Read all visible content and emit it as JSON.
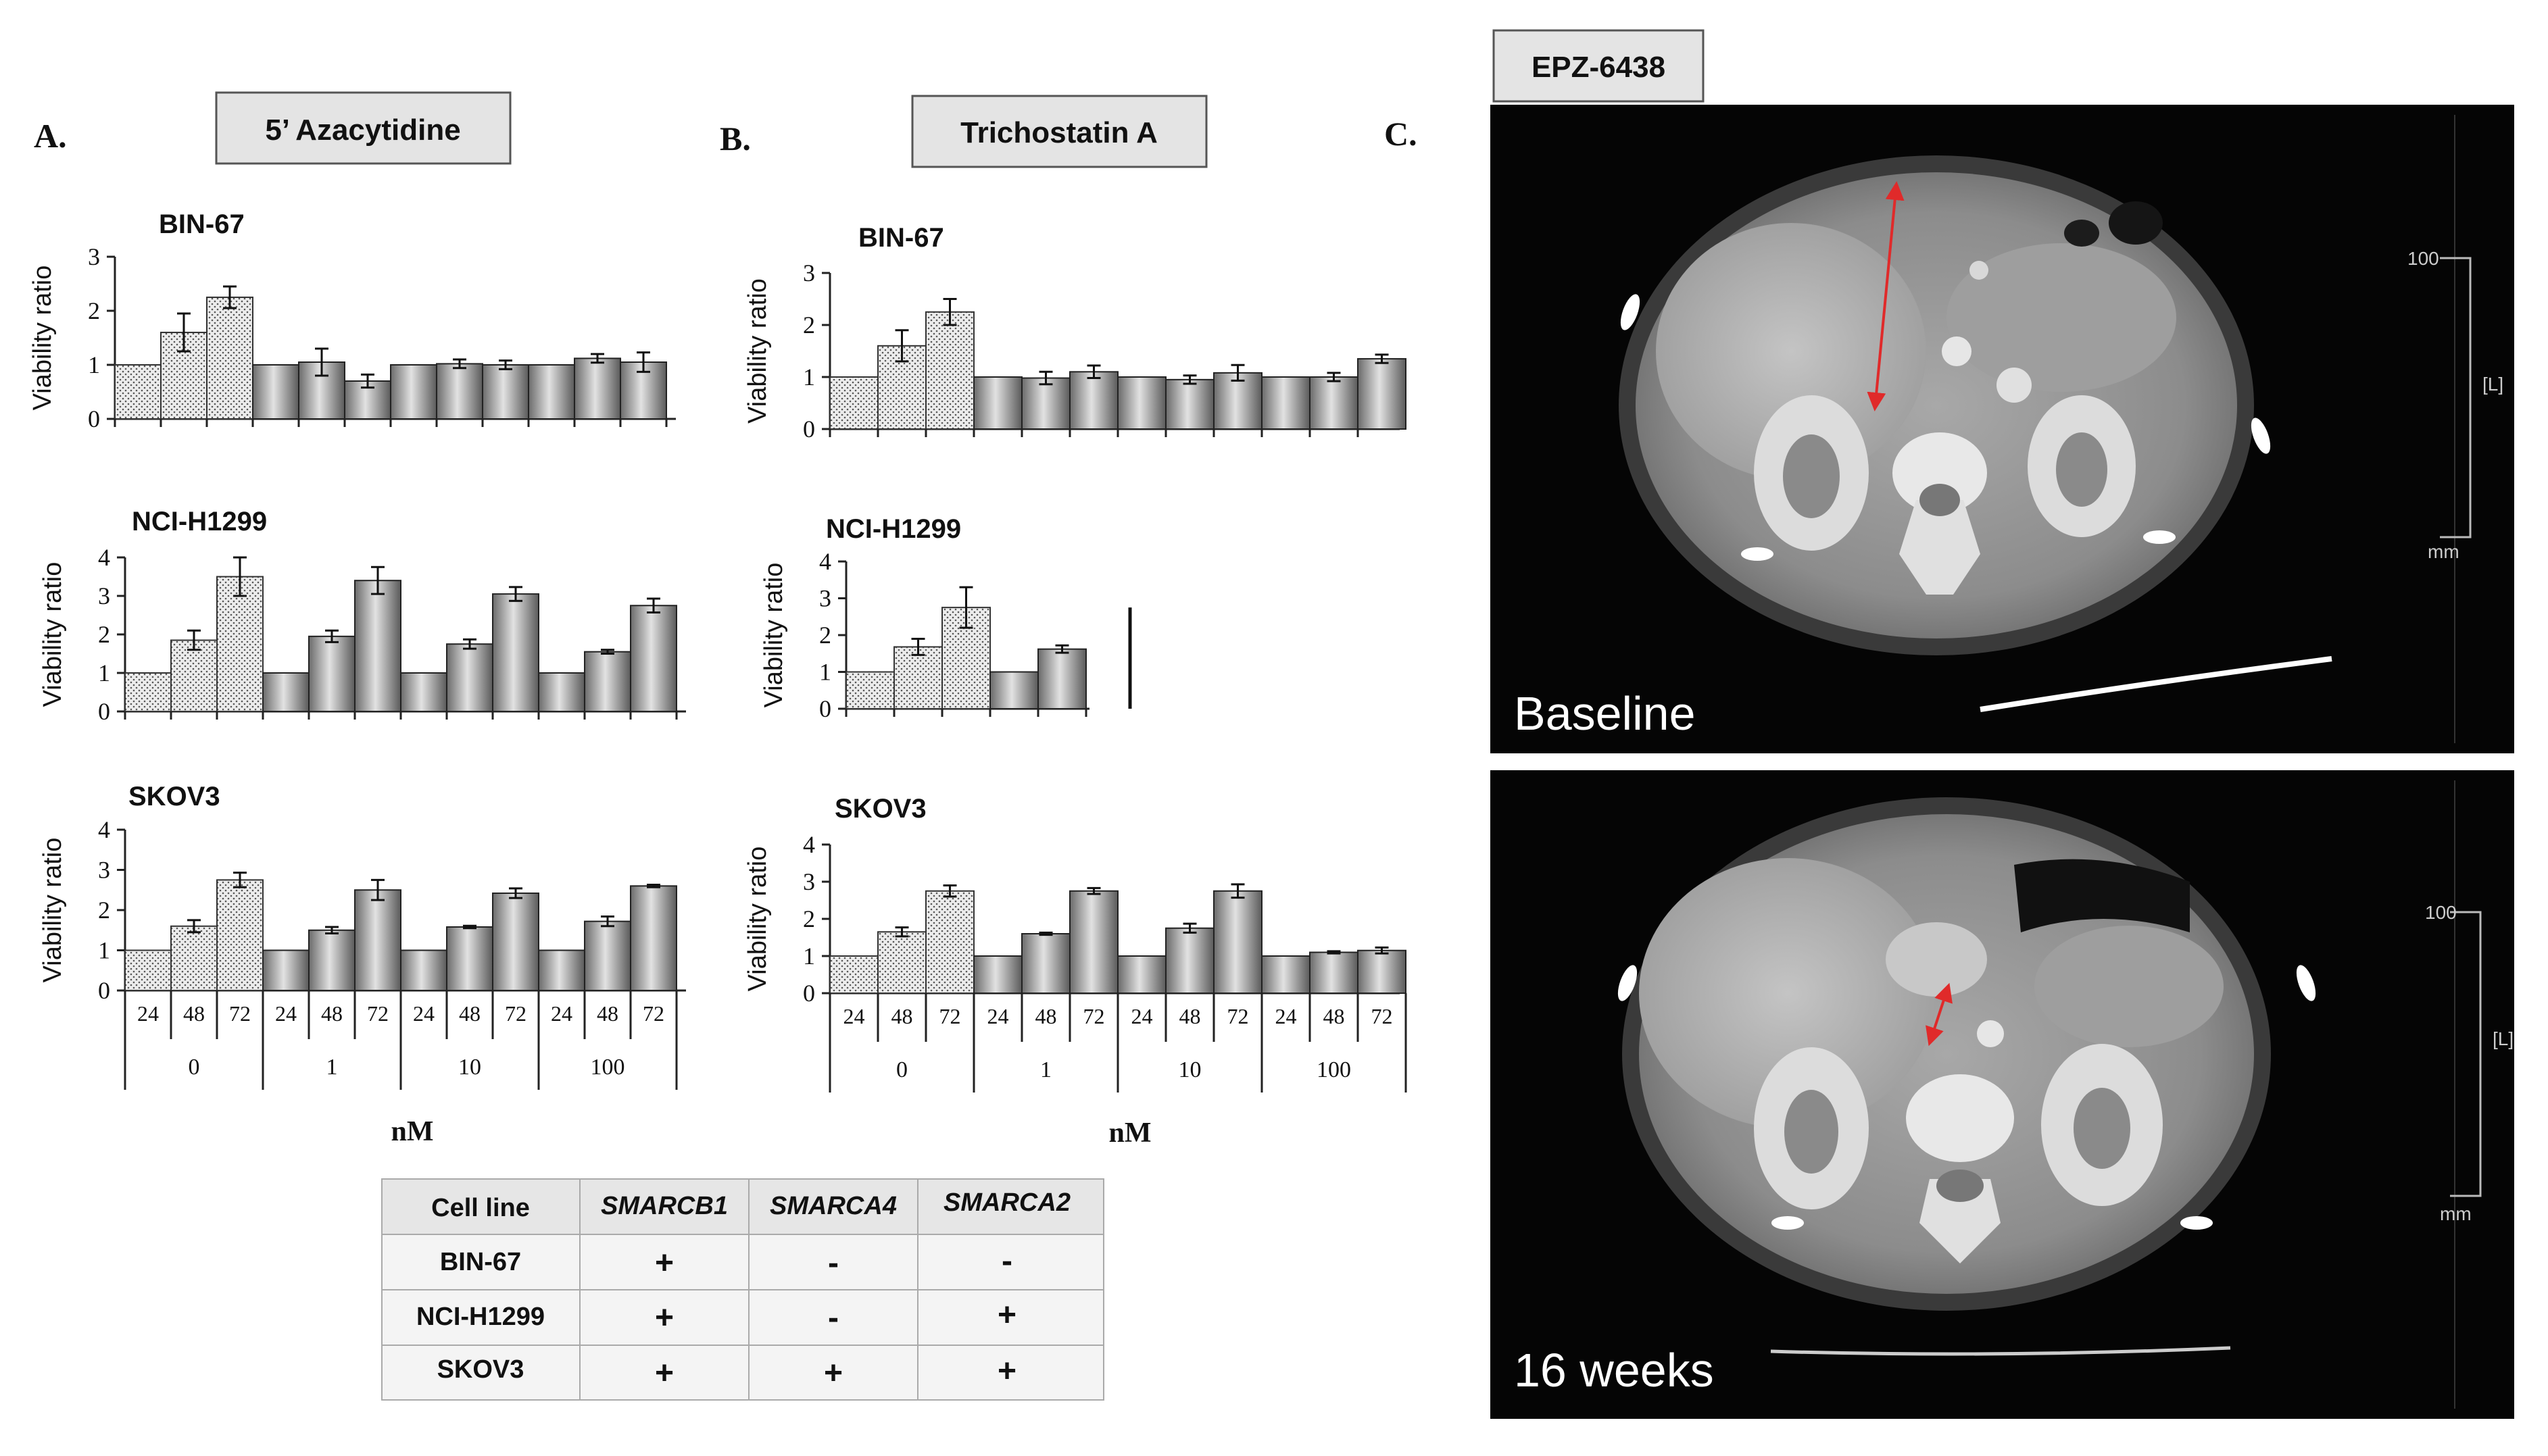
{
  "panel_letters": {
    "a": "A.",
    "b": "B.",
    "c": "C."
  },
  "drugs": {
    "a": "5’ Azacytidine",
    "b": "Trichostatin A",
    "c": "EPZ-6438"
  },
  "y_axis_label": "Viability ratio",
  "x_unit": "nM",
  "time_labels": [
    "24",
    "48",
    "72"
  ],
  "dose_labels": [
    "0",
    "1",
    "10",
    "100"
  ],
  "ct_images": {
    "top_label": "Baseline",
    "bottom_label": "16 weeks",
    "scale_100": "100",
    "scale_L": "[L]",
    "scale_mm": "mm"
  },
  "table": {
    "headers": [
      "Cell line",
      "SMARCB1",
      "SMARCA4",
      "SMARCA2"
    ],
    "rows": [
      {
        "cell_line": "BIN-67",
        "SMARCB1": "+",
        "SMARCA4": "-",
        "SMARCA2": "-"
      },
      {
        "cell_line": "NCI-H1299",
        "SMARCB1": "+",
        "SMARCA4": "-",
        "SMARCA2": "+"
      },
      {
        "cell_line": "SKOV3",
        "SMARCB1": "+",
        "SMARCA4": "+",
        "SMARCA2": "+"
      }
    ]
  },
  "chart_data": [
    {
      "type": "bar",
      "panel": "A",
      "title": "BIN-67",
      "ylabel": "Viability ratio",
      "xlabel": "",
      "ylim": [
        0,
        3
      ],
      "yticks": [
        0,
        1,
        2,
        3
      ],
      "groups": [
        "0",
        "1",
        "10",
        "100"
      ],
      "times": [
        "24",
        "48",
        "72"
      ],
      "values": [
        1.0,
        1.6,
        2.25,
        1.0,
        1.05,
        0.7,
        1.0,
        1.02,
        1.0,
        1.0,
        1.12,
        1.05
      ],
      "errors": [
        0,
        0.35,
        0.2,
        0,
        0.25,
        0.12,
        0,
        0.08,
        0.08,
        0,
        0.08,
        0.18
      ],
      "show_xaxis": false
    },
    {
      "type": "bar",
      "panel": "A",
      "title": "NCI-H1299",
      "ylabel": "Viability ratio",
      "xlabel": "",
      "ylim": [
        0,
        4
      ],
      "yticks": [
        0,
        1,
        2,
        3,
        4
      ],
      "groups": [
        "0",
        "1",
        "10",
        "100"
      ],
      "times": [
        "24",
        "48",
        "72"
      ],
      "values": [
        1.0,
        1.85,
        3.5,
        1.0,
        1.95,
        3.4,
        1.0,
        1.75,
        3.05,
        1.0,
        1.55,
        2.75
      ],
      "errors": [
        0,
        0.25,
        0.5,
        0,
        0.15,
        0.35,
        0,
        0.12,
        0.18,
        0,
        0.05,
        0.18
      ],
      "show_xaxis": false
    },
    {
      "type": "bar",
      "panel": "A",
      "title": "SKOV3",
      "ylabel": "Viability ratio",
      "xlabel": "nM",
      "ylim": [
        0,
        4
      ],
      "yticks": [
        0,
        1,
        2,
        3,
        4
      ],
      "groups": [
        "0",
        "1",
        "10",
        "100"
      ],
      "times": [
        "24",
        "48",
        "72"
      ],
      "values": [
        1.0,
        1.6,
        2.75,
        1.0,
        1.5,
        2.5,
        1.0,
        1.58,
        2.42,
        1.0,
        1.72,
        2.6
      ],
      "errors": [
        0,
        0.15,
        0.18,
        0,
        0.08,
        0.25,
        0,
        0.03,
        0.12,
        0,
        0.12,
        0.03
      ],
      "show_xaxis": true
    },
    {
      "type": "bar",
      "panel": "B",
      "title": "BIN-67",
      "ylabel": "Viability ratio",
      "xlabel": "",
      "ylim": [
        0,
        3
      ],
      "yticks": [
        0,
        1,
        2,
        3
      ],
      "groups": [
        "0",
        "1",
        "10",
        "100"
      ],
      "times": [
        "24",
        "48",
        "72"
      ],
      "values": [
        1.0,
        1.6,
        2.25,
        1.0,
        0.98,
        1.1,
        1.0,
        0.95,
        1.08,
        1.0,
        1.0,
        1.35
      ],
      "errors": [
        0,
        0.3,
        0.25,
        0,
        0.12,
        0.12,
        0,
        0.08,
        0.15,
        0,
        0.08,
        0.08
      ],
      "show_xaxis": false
    },
    {
      "type": "bar",
      "panel": "B",
      "title": "NCI-H1299",
      "ylabel": "Viability ratio",
      "xlabel": "",
      "ylim": [
        0,
        4
      ],
      "yticks": [
        0,
        1,
        2,
        3,
        4
      ],
      "groups": [
        "0",
        "1",
        "10",
        "100"
      ],
      "times": [
        "24",
        "48",
        "72"
      ],
      "values": [
        1.0,
        1.68,
        2.75,
        1.0,
        1.62,
        null,
        null,
        null,
        null,
        null,
        null,
        null
      ],
      "errors": [
        0,
        0.22,
        0.55,
        0,
        0.1,
        null,
        null,
        null,
        null,
        null,
        null,
        null
      ],
      "show_xaxis": false
    },
    {
      "type": "bar",
      "panel": "B",
      "title": "SKOV3",
      "ylabel": "Viability ratio",
      "xlabel": "nM",
      "ylim": [
        0,
        4
      ],
      "yticks": [
        0,
        1,
        2,
        3,
        4
      ],
      "groups": [
        "0",
        "1",
        "10",
        "100"
      ],
      "times": [
        "24",
        "48",
        "72"
      ],
      "values": [
        1.0,
        1.65,
        2.75,
        1.0,
        1.6,
        2.75,
        1.0,
        1.75,
        2.75,
        1.0,
        1.1,
        1.15
      ],
      "errors": [
        0,
        0.12,
        0.15,
        0,
        0.03,
        0.08,
        0,
        0.12,
        0.18,
        0,
        0.03,
        0.08
      ],
      "show_xaxis": true
    }
  ]
}
